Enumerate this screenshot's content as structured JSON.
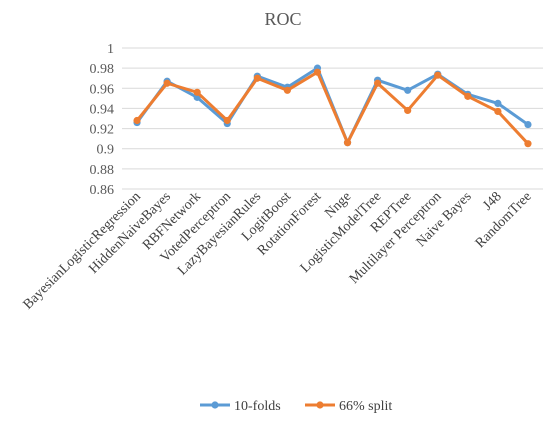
{
  "chart_data": {
    "type": "line",
    "title": "ROC",
    "xlabel": "",
    "ylabel": "",
    "ylim": [
      0.86,
      1.0
    ],
    "ytick_step": 0.02,
    "y_ticks": [
      "0.86",
      "0.88",
      "0.9",
      "0.92",
      "0.94",
      "0.96",
      "0.98",
      "1"
    ],
    "grid": true,
    "legend": "bottom",
    "categories": [
      "BayesianLogisticRegression",
      "HiddenNaiveBayes",
      "RBFNetwork",
      "VotedPerceptron",
      "LazyBayesianRules",
      "LogitBoost",
      "RotationForest",
      "Nnge",
      "LogisticModelTree",
      "REPTree",
      "Multilayer Perceptron",
      "Naive Bayes",
      "J48",
      "RandomTree"
    ],
    "series": [
      {
        "name": "10-folds",
        "color": "#5B9BD5",
        "values": [
          0.926,
          0.967,
          0.951,
          0.925,
          0.972,
          0.961,
          0.98,
          0.906,
          0.968,
          0.958,
          0.974,
          0.954,
          0.945,
          0.924
        ]
      },
      {
        "name": "66% split",
        "color": "#ED7D31",
        "values": [
          0.928,
          0.965,
          0.956,
          0.928,
          0.97,
          0.958,
          0.976,
          0.906,
          0.965,
          0.938,
          0.973,
          0.952,
          0.937,
          0.905
        ]
      }
    ]
  }
}
